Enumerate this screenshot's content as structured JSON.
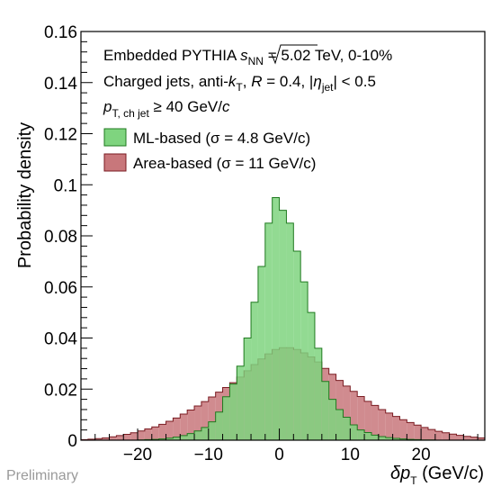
{
  "chart_data": {
    "type": "histogram",
    "xlabel": "δp_T (GeV/c)",
    "ylabel": "Probability density",
    "xlim": [
      -28,
      29
    ],
    "ylim": [
      0,
      0.16
    ],
    "x_ticks": [
      -20,
      -10,
      0,
      10,
      20
    ],
    "x_tick_labels": [
      "−20",
      "−10",
      "0",
      "10",
      "20"
    ],
    "y_ticks": [
      0,
      0.02,
      0.04,
      0.06,
      0.08,
      0.1,
      0.12,
      0.14,
      0.16
    ],
    "y_tick_labels": [
      "0",
      "0.02",
      "0.04",
      "0.06",
      "0.08",
      "0.1",
      "0.12",
      "0.14",
      "0.16"
    ],
    "bin_edges": [
      -28,
      -27,
      -26,
      -25,
      -24,
      -23,
      -22,
      -21,
      -20,
      -19,
      -18,
      -17,
      -16,
      -15,
      -14,
      -13,
      -12,
      -11,
      -10,
      -9,
      -8,
      -7,
      -6,
      -5,
      -4,
      -3,
      -2,
      -1,
      0,
      1,
      2,
      3,
      4,
      5,
      6,
      7,
      8,
      9,
      10,
      11,
      12,
      13,
      14,
      15,
      16,
      17,
      18,
      19,
      20,
      21,
      22,
      23,
      24,
      25,
      26,
      27,
      28,
      29
    ],
    "series": [
      {
        "name": "Area-based (σ = 11 GeV/c)",
        "fill_color": "#c8777b",
        "edge_color": "#7a1b21",
        "values": [
          0.0002,
          0.0004,
          0.0006,
          0.0009,
          0.0013,
          0.0018,
          0.0023,
          0.0029,
          0.0036,
          0.0044,
          0.0052,
          0.0062,
          0.0074,
          0.0087,
          0.0102,
          0.0118,
          0.0134,
          0.0151,
          0.0169,
          0.0188,
          0.0206,
          0.0225,
          0.0247,
          0.0272,
          0.0296,
          0.0318,
          0.0338,
          0.0355,
          0.0362,
          0.0362,
          0.0355,
          0.0342,
          0.0326,
          0.0306,
          0.0281,
          0.0258,
          0.0234,
          0.0212,
          0.0191,
          0.0171,
          0.0152,
          0.0136,
          0.012,
          0.0106,
          0.0093,
          0.008,
          0.0069,
          0.0059,
          0.005,
          0.0042,
          0.0035,
          0.0029,
          0.0024,
          0.0019,
          0.0015,
          0.0012,
          0.0009
        ]
      },
      {
        "name": "ML-based (σ = 4.8 GeV/c)",
        "fill_color": "#7fd47f",
        "edge_color": "#1f7a1f",
        "values": [
          0,
          0,
          0,
          0,
          0,
          0,
          0,
          0,
          0.0001,
          0.0002,
          0.0003,
          0.0005,
          0.0008,
          0.0012,
          0.0018,
          0.0026,
          0.0036,
          0.005,
          0.0072,
          0.011,
          0.017,
          0.022,
          0.029,
          0.04,
          0.054,
          0.068,
          0.085,
          0.095,
          0.09,
          0.085,
          0.074,
          0.062,
          0.05,
          0.036,
          0.023,
          0.016,
          0.012,
          0.009,
          0.006,
          0.004,
          0.003,
          0.002,
          0.0014,
          0.001,
          0.0007,
          0.0005,
          0.0003,
          0.0002,
          0.0001,
          0.0001,
          0,
          0,
          0,
          0,
          0,
          0,
          0
        ]
      }
    ]
  },
  "annotations": {
    "line1_pre": "Embedded PYTHIA ",
    "line1_sqrt_s": "s",
    "line1_sqrt_sub": "NN",
    "line1_post": " = 5.02 TeV, 0-10%",
    "line2_pre": "Charged jets, anti-",
    "line2_k": "k",
    "line2_k_sub": "T",
    "line2_mid": ", ",
    "line2_R": "R",
    "line2_R_val": " = 0.4, |",
    "line2_eta": "η",
    "line2_eta_sub": "jet",
    "line2_post": "| < 0.5",
    "line3_p": "p",
    "line3_sub": "T, ch jet",
    "line3_post": " ≥ 40 GeV/",
    "line3_c": "c"
  },
  "legend": {
    "ml_label": "ML-based (σ = 4.8 GeV/c)",
    "area_label": "Area-based (σ = 11 GeV/c)"
  },
  "labels": {
    "preliminary": "Preliminary",
    "y_axis": "Probability density",
    "x_axis_delta_p": "δp",
    "x_axis_sub": "T",
    "x_axis_unit": " (GeV/c)"
  }
}
